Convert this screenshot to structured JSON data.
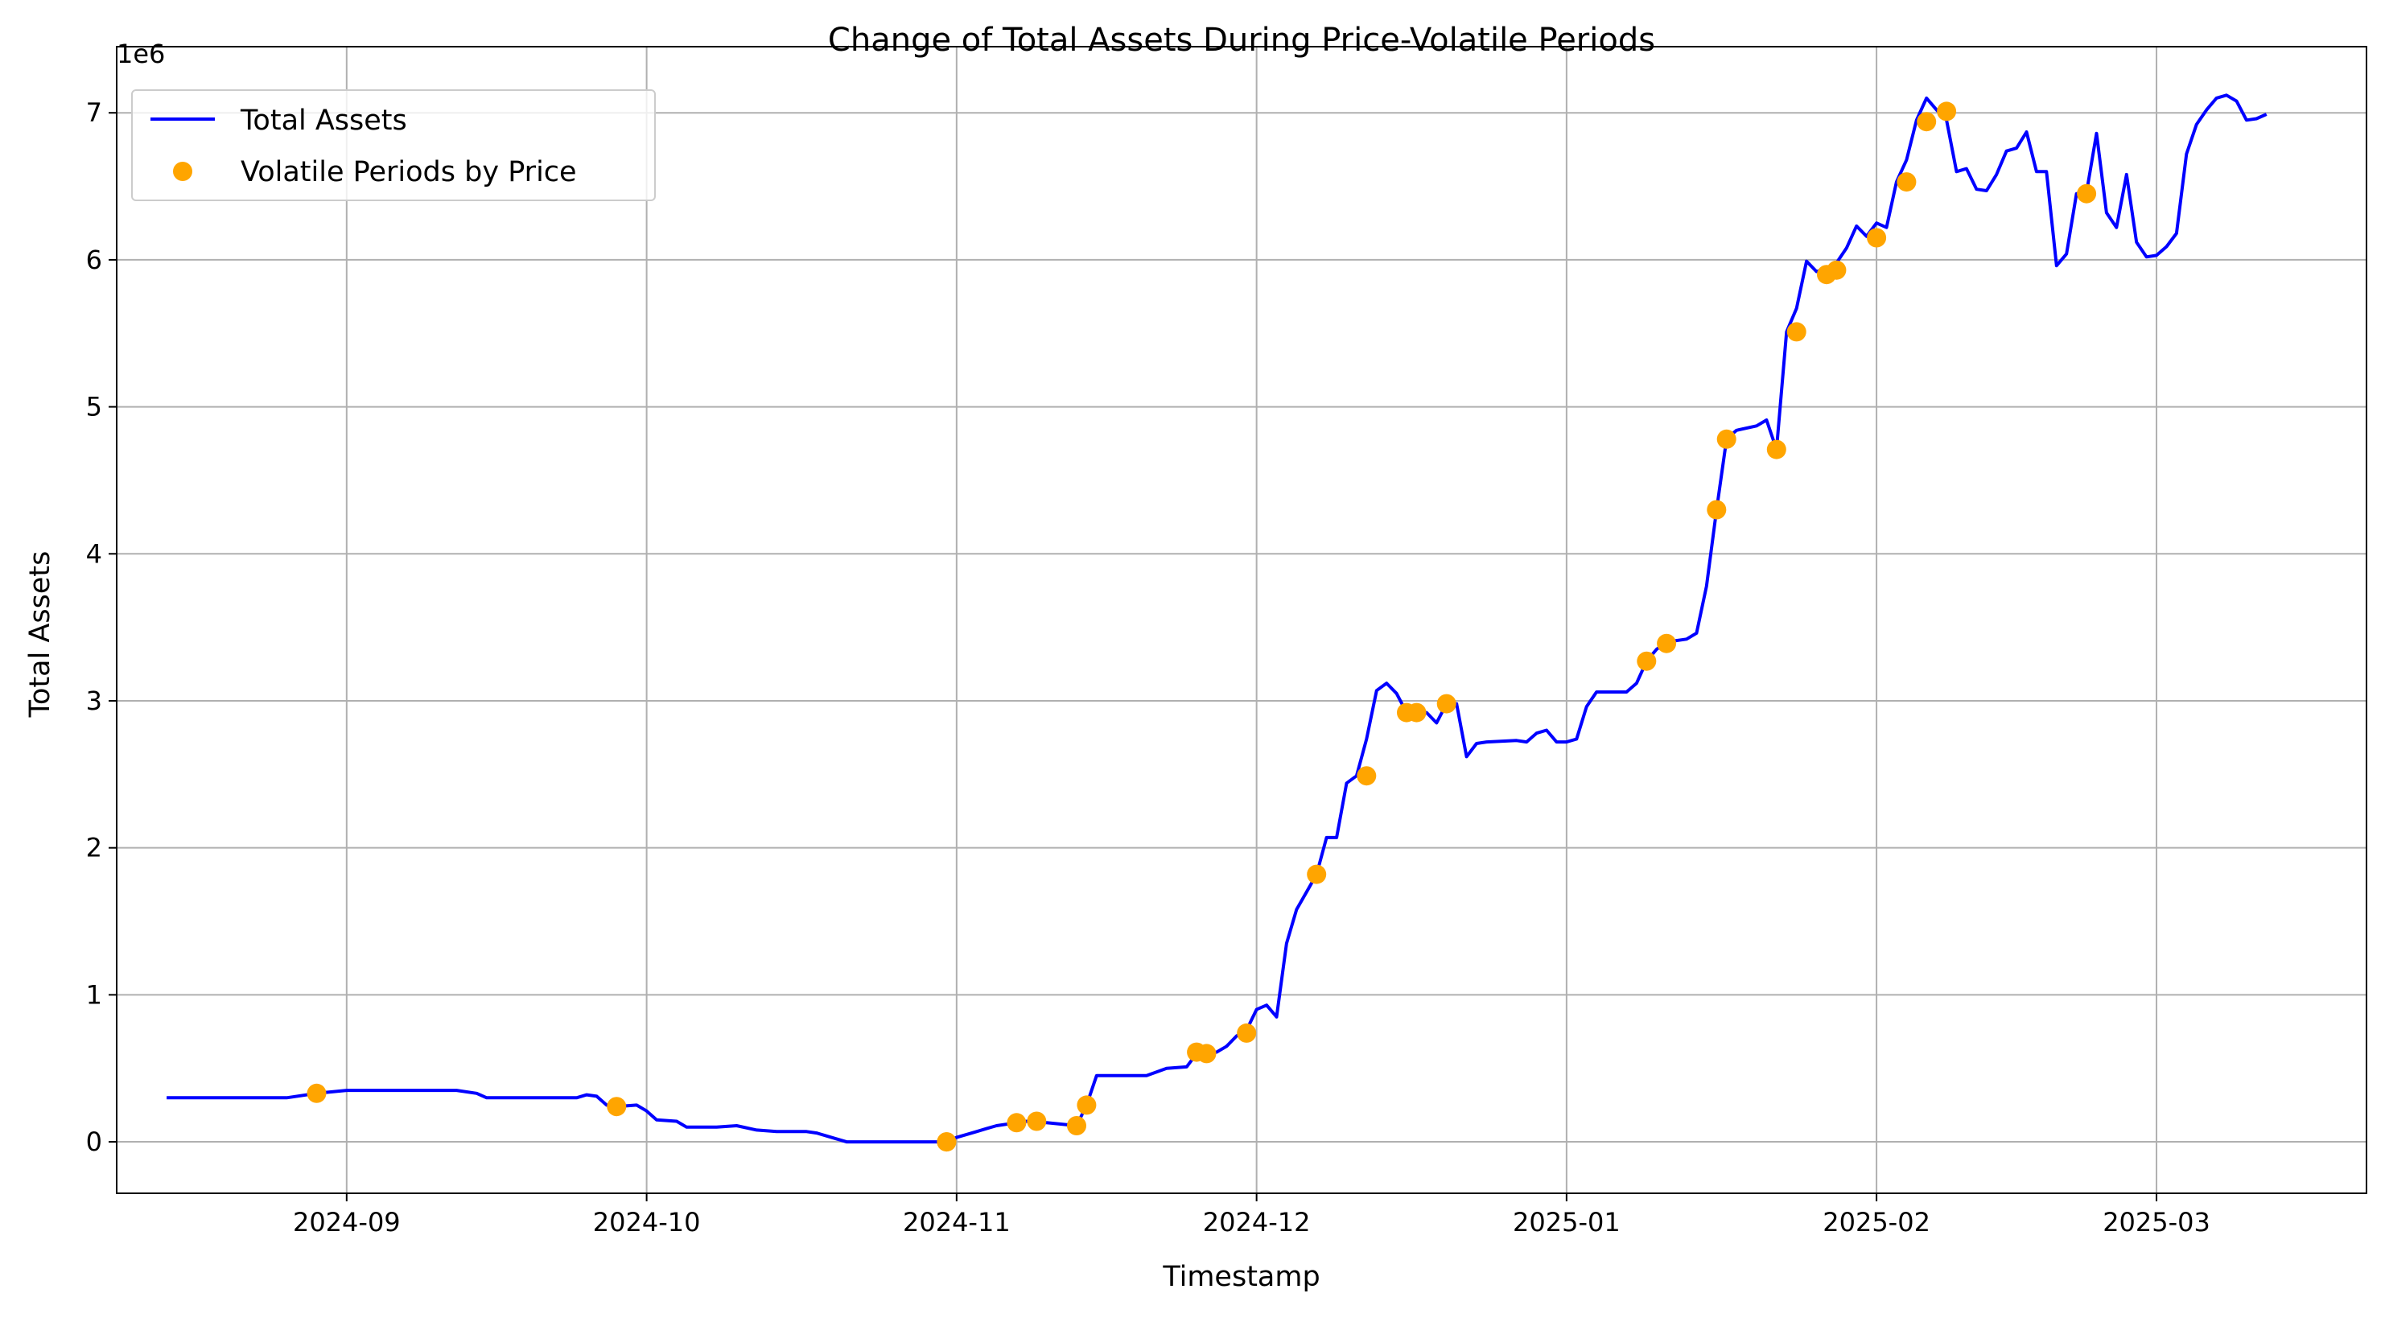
{
  "chart_data": {
    "type": "line",
    "title": "Change of Total Assets During Price-Volatile Periods",
    "xlabel": "Timestamp",
    "ylabel": "Total Assets",
    "y_multiplier_label": "1e6",
    "xlim": [
      "2024-08-09",
      "2025-03-22"
    ],
    "ylim": [
      -0.35,
      7.45
    ],
    "y_units": "millions",
    "x_ticks": [
      {
        "date": "2024-09-01",
        "label": "2024-09"
      },
      {
        "date": "2024-10-01",
        "label": "2024-10"
      },
      {
        "date": "2024-11-01",
        "label": "2024-11"
      },
      {
        "date": "2024-12-01",
        "label": "2024-12"
      },
      {
        "date": "2025-01-01",
        "label": "2025-01"
      },
      {
        "date": "2025-02-01",
        "label": "2025-02"
      },
      {
        "date": "2025-03-01",
        "label": "2025-03"
      }
    ],
    "y_ticks": [
      0,
      1,
      2,
      3,
      4,
      5,
      6,
      7
    ],
    "grid": true,
    "legend_position": "top-left",
    "series": [
      {
        "name": "Total Assets",
        "kind": "line",
        "color": "#0000ff",
        "points": [
          [
            "2024-08-14",
            0.3
          ],
          [
            "2024-08-20",
            0.3
          ],
          [
            "2024-08-26",
            0.3
          ],
          [
            "2024-08-29",
            0.33
          ],
          [
            "2024-09-01",
            0.35
          ],
          [
            "2024-09-07",
            0.35
          ],
          [
            "2024-09-12",
            0.35
          ],
          [
            "2024-09-14",
            0.33
          ],
          [
            "2024-09-15",
            0.3
          ],
          [
            "2024-09-20",
            0.3
          ],
          [
            "2024-09-24",
            0.3
          ],
          [
            "2024-09-25",
            0.32
          ],
          [
            "2024-09-26",
            0.31
          ],
          [
            "2024-09-27",
            0.25
          ],
          [
            "2024-09-28",
            0.24
          ],
          [
            "2024-09-30",
            0.25
          ],
          [
            "2024-10-01",
            0.21
          ],
          [
            "2024-10-02",
            0.15
          ],
          [
            "2024-10-04",
            0.14
          ],
          [
            "2024-10-05",
            0.1
          ],
          [
            "2024-10-08",
            0.1
          ],
          [
            "2024-10-10",
            0.11
          ],
          [
            "2024-10-12",
            0.08
          ],
          [
            "2024-10-14",
            0.07
          ],
          [
            "2024-10-17",
            0.07
          ],
          [
            "2024-10-18",
            0.06
          ],
          [
            "2024-10-20",
            0.02
          ],
          [
            "2024-10-21",
            0.0
          ],
          [
            "2024-10-31",
            0.0
          ],
          [
            "2024-11-01",
            0.03
          ],
          [
            "2024-11-02",
            0.05
          ],
          [
            "2024-11-03",
            0.07
          ],
          [
            "2024-11-04",
            0.09
          ],
          [
            "2024-11-05",
            0.11
          ],
          [
            "2024-11-07",
            0.13
          ],
          [
            "2024-11-08",
            0.14
          ],
          [
            "2024-11-10",
            0.13
          ],
          [
            "2024-11-13",
            0.11
          ],
          [
            "2024-11-14",
            0.25
          ],
          [
            "2024-11-15",
            0.45
          ],
          [
            "2024-11-20",
            0.45
          ],
          [
            "2024-11-22",
            0.5
          ],
          [
            "2024-11-24",
            0.51
          ],
          [
            "2024-11-25",
            0.6
          ],
          [
            "2024-11-27",
            0.61
          ],
          [
            "2024-11-28",
            0.65
          ],
          [
            "2024-11-29",
            0.72
          ],
          [
            "2024-11-30",
            0.76
          ],
          [
            "2024-12-01",
            0.9
          ],
          [
            "2024-12-02",
            0.93
          ],
          [
            "2024-12-03",
            0.85
          ],
          [
            "2024-12-04",
            1.35
          ],
          [
            "2024-12-05",
            1.58
          ],
          [
            "2024-12-06",
            1.7
          ],
          [
            "2024-12-07",
            1.82
          ],
          [
            "2024-12-08",
            2.07
          ],
          [
            "2024-12-09",
            2.07
          ],
          [
            "2024-12-10",
            2.44
          ],
          [
            "2024-12-11",
            2.49
          ],
          [
            "2024-12-12",
            2.74
          ],
          [
            "2024-12-13",
            3.07
          ],
          [
            "2024-12-14",
            3.12
          ],
          [
            "2024-12-15",
            3.05
          ],
          [
            "2024-12-16",
            2.92
          ],
          [
            "2024-12-17",
            2.93
          ],
          [
            "2024-12-18",
            2.92
          ],
          [
            "2024-12-19",
            2.85
          ],
          [
            "2024-12-20",
            2.98
          ],
          [
            "2024-12-21",
            2.98
          ],
          [
            "2024-12-22",
            2.62
          ],
          [
            "2024-12-23",
            2.71
          ],
          [
            "2024-12-24",
            2.72
          ],
          [
            "2024-12-27",
            2.73
          ],
          [
            "2024-12-28",
            2.72
          ],
          [
            "2024-12-29",
            2.78
          ],
          [
            "2024-12-30",
            2.8
          ],
          [
            "2024-12-31",
            2.72
          ],
          [
            "2025-01-01",
            2.72
          ],
          [
            "2025-01-02",
            2.74
          ],
          [
            "2025-01-03",
            2.96
          ],
          [
            "2025-01-04",
            3.06
          ],
          [
            "2025-01-07",
            3.06
          ],
          [
            "2025-01-08",
            3.12
          ],
          [
            "2025-01-09",
            3.27
          ],
          [
            "2025-01-10",
            3.35
          ],
          [
            "2025-01-11",
            3.4
          ],
          [
            "2025-01-13",
            3.42
          ],
          [
            "2025-01-14",
            3.46
          ],
          [
            "2025-01-15",
            3.78
          ],
          [
            "2025-01-16",
            4.3
          ],
          [
            "2025-01-17",
            4.78
          ],
          [
            "2025-01-18",
            4.84
          ],
          [
            "2025-01-20",
            4.87
          ],
          [
            "2025-01-21",
            4.91
          ],
          [
            "2025-01-22",
            4.71
          ],
          [
            "2025-01-23",
            5.51
          ],
          [
            "2025-01-24",
            5.67
          ],
          [
            "2025-01-25",
            5.99
          ],
          [
            "2025-01-26",
            5.92
          ],
          [
            "2025-01-27",
            5.94
          ],
          [
            "2025-01-28",
            5.98
          ],
          [
            "2025-01-29",
            6.08
          ],
          [
            "2025-01-30",
            6.23
          ],
          [
            "2025-01-31",
            6.16
          ],
          [
            "2025-02-01",
            6.25
          ],
          [
            "2025-02-02",
            6.22
          ],
          [
            "2025-02-03",
            6.53
          ],
          [
            "2025-02-04",
            6.68
          ],
          [
            "2025-02-05",
            6.95
          ],
          [
            "2025-02-06",
            7.1
          ],
          [
            "2025-02-07",
            7.02
          ],
          [
            "2025-02-08",
            6.95
          ],
          [
            "2025-02-09",
            6.6
          ],
          [
            "2025-02-10",
            6.62
          ],
          [
            "2025-02-11",
            6.48
          ],
          [
            "2025-02-12",
            6.47
          ],
          [
            "2025-02-13",
            6.58
          ],
          [
            "2025-02-14",
            6.74
          ],
          [
            "2025-02-15",
            6.76
          ],
          [
            "2025-02-16",
            6.87
          ],
          [
            "2025-02-17",
            6.6
          ],
          [
            "2025-02-18",
            6.6
          ],
          [
            "2025-02-19",
            5.96
          ],
          [
            "2025-02-20",
            6.04
          ],
          [
            "2025-02-21",
            6.45
          ],
          [
            "2025-02-22",
            6.46
          ],
          [
            "2025-02-23",
            6.86
          ],
          [
            "2025-02-24",
            6.32
          ],
          [
            "2025-02-25",
            6.22
          ],
          [
            "2025-02-26",
            6.58
          ],
          [
            "2025-02-27",
            6.12
          ],
          [
            "2025-02-28",
            6.02
          ],
          [
            "2025-03-01",
            6.03
          ],
          [
            "2025-03-02",
            6.09
          ],
          [
            "2025-03-03",
            6.18
          ],
          [
            "2025-03-04",
            6.72
          ],
          [
            "2025-03-05",
            6.92
          ],
          [
            "2025-03-06",
            7.02
          ],
          [
            "2025-03-07",
            7.1
          ],
          [
            "2025-03-08",
            7.12
          ],
          [
            "2025-03-09",
            7.08
          ],
          [
            "2025-03-10",
            6.95
          ],
          [
            "2025-03-11",
            6.96
          ],
          [
            "2025-03-12",
            6.99
          ]
        ]
      },
      {
        "name": "Volatile Periods by Price",
        "kind": "scatter",
        "color": "#ffa500",
        "points": [
          [
            "2024-08-29",
            0.33
          ],
          [
            "2024-09-28",
            0.24
          ],
          [
            "2024-10-31",
            0.0
          ],
          [
            "2024-10-31",
            0.0
          ],
          [
            "2024-11-07",
            0.13
          ],
          [
            "2024-11-09",
            0.14
          ],
          [
            "2024-11-13",
            0.11
          ],
          [
            "2024-11-14",
            0.25
          ],
          [
            "2024-11-25",
            0.61
          ],
          [
            "2024-11-26",
            0.6
          ],
          [
            "2024-11-30",
            0.74
          ],
          [
            "2024-12-07",
            1.82
          ],
          [
            "2024-12-12",
            2.49
          ],
          [
            "2024-12-16",
            2.92
          ],
          [
            "2024-12-17",
            2.92
          ],
          [
            "2024-12-20",
            2.98
          ],
          [
            "2025-01-09",
            3.27
          ],
          [
            "2025-01-11",
            3.39
          ],
          [
            "2025-01-16",
            4.3
          ],
          [
            "2025-01-17",
            4.78
          ],
          [
            "2025-01-22",
            4.71
          ],
          [
            "2025-01-24",
            5.51
          ],
          [
            "2025-01-27",
            5.9
          ],
          [
            "2025-01-28",
            5.93
          ],
          [
            "2025-02-01",
            6.15
          ],
          [
            "2025-02-04",
            6.53
          ],
          [
            "2025-02-06",
            6.94
          ],
          [
            "2025-02-08",
            7.01
          ],
          [
            "2025-02-22",
            6.45
          ]
        ]
      }
    ]
  }
}
